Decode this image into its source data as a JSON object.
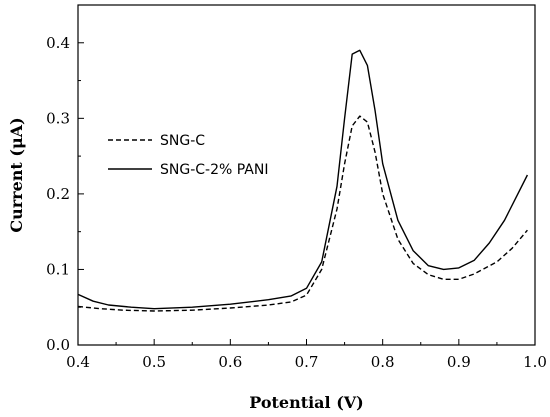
{
  "chart_data": {
    "type": "line",
    "title": "",
    "xlabel": "Potential (V)",
    "ylabel": "Current (μA)",
    "xlim": [
      0.4,
      1.0
    ],
    "ylim": [
      0.0,
      0.45
    ],
    "x_ticks": [
      "0.4",
      "0.5",
      "0.6",
      "0.7",
      "0.8",
      "0.9",
      "1.0"
    ],
    "y_ticks": [
      "0.0",
      "0.1",
      "0.2",
      "0.3",
      "0.4"
    ],
    "grid": false,
    "legend_position": "center-left",
    "series": [
      {
        "name": "SNG-C",
        "style": "dashed",
        "color": "#000000",
        "x": [
          0.4,
          0.43,
          0.46,
          0.5,
          0.55,
          0.6,
          0.65,
          0.68,
          0.7,
          0.72,
          0.74,
          0.75,
          0.76,
          0.77,
          0.78,
          0.79,
          0.8,
          0.82,
          0.84,
          0.86,
          0.88,
          0.9,
          0.92,
          0.95,
          0.97,
          0.99
        ],
        "y": [
          0.051,
          0.048,
          0.046,
          0.045,
          0.046,
          0.049,
          0.053,
          0.057,
          0.066,
          0.1,
          0.18,
          0.24,
          0.29,
          0.303,
          0.295,
          0.255,
          0.2,
          0.14,
          0.108,
          0.093,
          0.087,
          0.087,
          0.094,
          0.11,
          0.128,
          0.152
        ]
      },
      {
        "name": "SNG-C-2% PANI",
        "style": "solid",
        "color": "#000000",
        "x": [
          0.4,
          0.42,
          0.44,
          0.47,
          0.5,
          0.55,
          0.6,
          0.65,
          0.68,
          0.7,
          0.72,
          0.74,
          0.75,
          0.76,
          0.77,
          0.78,
          0.79,
          0.8,
          0.82,
          0.84,
          0.86,
          0.88,
          0.9,
          0.92,
          0.94,
          0.96,
          0.99
        ],
        "y": [
          0.067,
          0.058,
          0.053,
          0.05,
          0.048,
          0.05,
          0.054,
          0.06,
          0.065,
          0.075,
          0.11,
          0.21,
          0.3,
          0.385,
          0.39,
          0.37,
          0.31,
          0.24,
          0.165,
          0.125,
          0.105,
          0.1,
          0.102,
          0.112,
          0.135,
          0.165,
          0.225
        ]
      }
    ]
  }
}
